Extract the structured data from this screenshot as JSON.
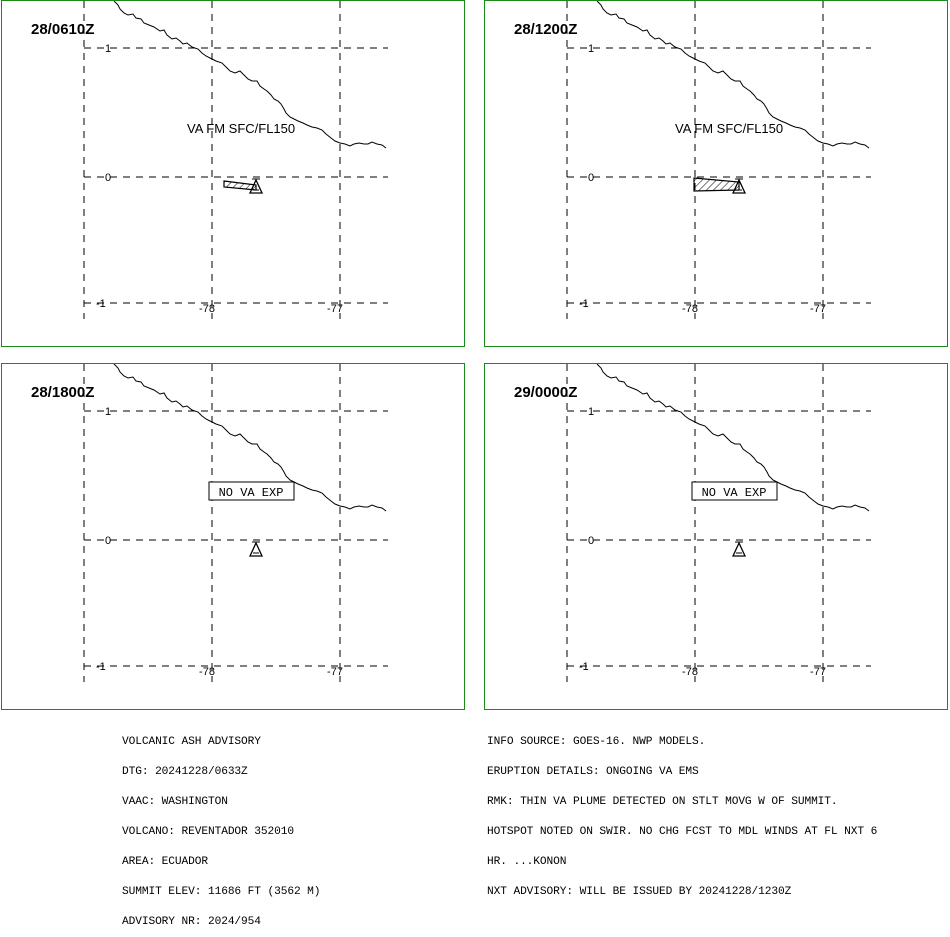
{
  "panels": [
    {
      "time": "28/0610Z",
      "label": "VA FM SFC/FL150",
      "label_kind": "text",
      "plume": "small"
    },
    {
      "time": "28/1200Z",
      "label": "VA FM SFC/FL150",
      "label_kind": "text",
      "plume": "large"
    },
    {
      "time": "28/1800Z",
      "label": "NO VA EXP",
      "label_kind": "box",
      "plume": "none"
    },
    {
      "time": "29/0000Z",
      "label": "NO VA EXP",
      "label_kind": "box",
      "plume": "none"
    }
  ],
  "grid": {
    "lat_labels": [
      "1",
      "0",
      "-1"
    ],
    "lon_labels": [
      "-78",
      "-77"
    ]
  },
  "advisory_left": [
    "VOLCANIC ASH ADVISORY",
    "DTG: 20241228/0633Z",
    "VAAC: WASHINGTON",
    "VOLCANO: REVENTADOR 352010",
    "AREA: ECUADOR",
    "SUMMIT ELEV: 11686 FT (3562 M)",
    "ADVISORY NR: 2024/954"
  ],
  "advisory_right": [
    "INFO SOURCE: GOES-16. NWP MODELS.",
    "ERUPTION DETAILS: ONGOING VA EMS",
    "RMK: THIN VA PLUME DETECTED ON STLT MOVG W OF SUMMIT.",
    "HOTSPOT NOTED ON SWIR. NO CHG FCST TO MDL WINDS AT FL NXT 6",
    "HR. ...KONON",
    "NXT ADVISORY: WILL BE ISSUED BY 20241228/1230Z"
  ],
  "colors": {
    "frame": "#1a8a1a",
    "ink": "#000000"
  },
  "icons": {
    "volcano": "volcano-triangle-icon"
  }
}
